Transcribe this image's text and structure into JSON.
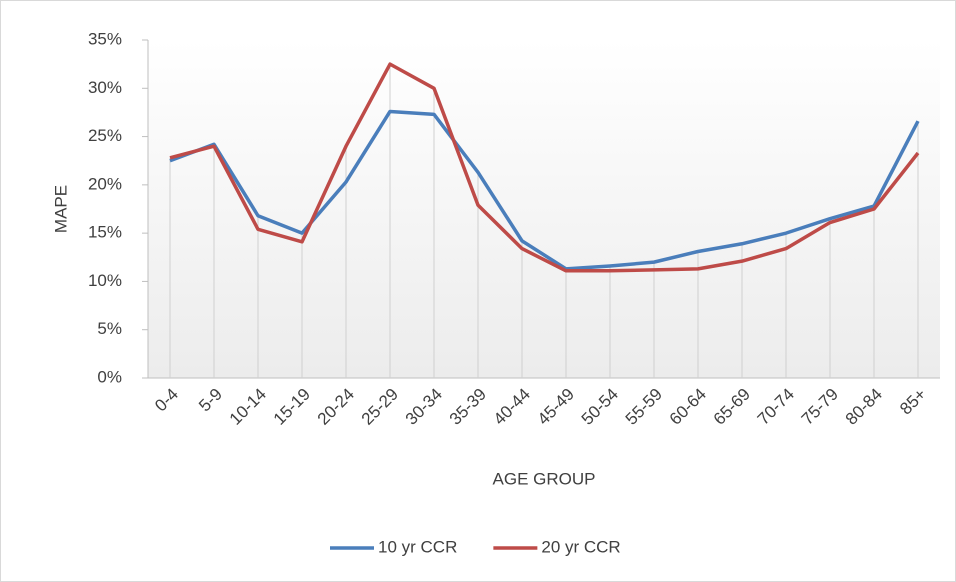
{
  "chart_data": {
    "type": "line",
    "y_label": "MAPE",
    "x_label": "AGE GROUP",
    "categories": [
      "0-4",
      "5-9",
      "10-14",
      "15-19",
      "20-24",
      "25-29",
      "30-34",
      "35-39",
      "40-44",
      "45-49",
      "50-54",
      "55-59",
      "60-64",
      "65-69",
      "70-74",
      "75-79",
      "80-84",
      "85+"
    ],
    "series": [
      {
        "name": "10 yr CCR",
        "color": "#4a7ebb",
        "values": [
          22.5,
          24.2,
          16.8,
          15.0,
          20.3,
          27.6,
          27.3,
          21.3,
          14.2,
          11.3,
          11.6,
          12.0,
          13.1,
          13.9,
          15.0,
          16.5,
          17.8,
          26.6
        ]
      },
      {
        "name": "20 yr CCR",
        "color": "#be4b48",
        "values": [
          22.8,
          24.0,
          15.4,
          14.1,
          24.0,
          32.5,
          30.0,
          17.9,
          13.4,
          11.1,
          11.1,
          11.2,
          11.3,
          12.1,
          13.4,
          16.1,
          17.5,
          23.3
        ]
      }
    ],
    "ylim": [
      0,
      35
    ],
    "yticks": [
      {
        "value": 0,
        "label": "0%"
      },
      {
        "value": 5,
        "label": "5%"
      },
      {
        "value": 10,
        "label": "10%"
      },
      {
        "value": 15,
        "label": "15%"
      },
      {
        "value": 20,
        "label": "20%"
      },
      {
        "value": 25,
        "label": "25%"
      },
      {
        "value": 30,
        "label": "30%"
      },
      {
        "value": 35,
        "label": "35%"
      }
    ],
    "drop_lines": true,
    "legend": "bottom"
  }
}
